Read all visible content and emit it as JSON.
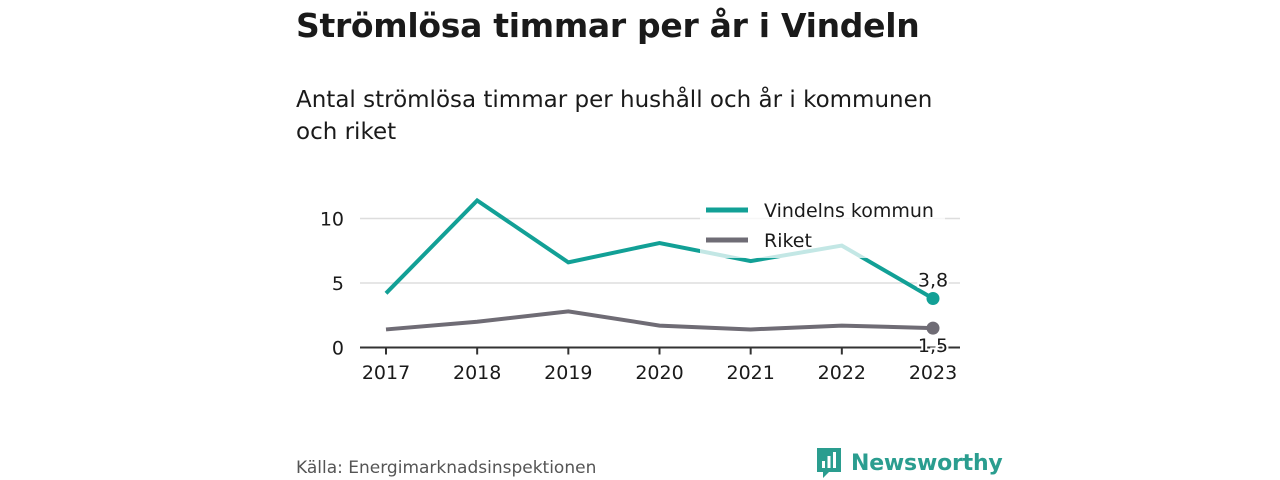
{
  "header": {
    "title": "Strömlösa timmar per år i Vindeln",
    "subtitle": "Antal strömlösa timmar per hushåll och år i kommunen och riket"
  },
  "footer": {
    "source": "Källa: Energimarknadsinspektionen",
    "brand": "Newsworthy",
    "brand_icon": "bar-chart-icon"
  },
  "colors": {
    "vindeln": "#12a096",
    "riket": "#6f6c75",
    "grid": "#dddddd",
    "axis": "#333333",
    "text": "#1a1a1a",
    "brand": "#2a9d8f"
  },
  "chart_data": {
    "type": "line",
    "categories": [
      "2017",
      "2018",
      "2019",
      "2020",
      "2021",
      "2022",
      "2023"
    ],
    "ylim": [
      0,
      12
    ],
    "yticks": [
      0,
      5,
      10
    ],
    "series": [
      {
        "name": "Vindelns kommun",
        "values": [
          4.2,
          11.4,
          6.6,
          8.1,
          6.7,
          7.9,
          3.8
        ],
        "end_label": "3,8"
      },
      {
        "name": "Riket",
        "values": [
          1.4,
          2.0,
          2.8,
          1.7,
          1.4,
          1.7,
          1.5
        ],
        "end_label": "1,5"
      }
    ],
    "legend_position": "top-right",
    "grid": true
  }
}
